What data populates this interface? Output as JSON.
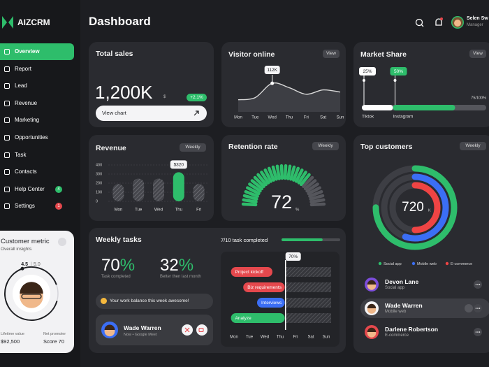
{
  "brand": "AIZCRM",
  "nav": [
    {
      "label": "Overview",
      "active": true
    },
    {
      "label": "Report"
    },
    {
      "label": "Lead"
    },
    {
      "label": "Revenue"
    },
    {
      "label": "Marketing"
    },
    {
      "label": "Opportunities"
    },
    {
      "label": "Task"
    },
    {
      "label": "Contacts"
    },
    {
      "label": "Help Center",
      "badge": "4",
      "badge_color": "#2ebd6b"
    },
    {
      "label": "Settings",
      "badge": "1",
      "badge_color": "#e5484d"
    }
  ],
  "customer_metric": {
    "title": "Customer metric",
    "subtitle": "Overall insights",
    "rating": 4.5,
    "rating_max": {
      "value": 5,
      "label": "5.0"
    },
    "stats": [
      {
        "label": "Lifetime value",
        "value": "$92,500"
      },
      {
        "label": "Net promoter",
        "value": "Score 70"
      }
    ]
  },
  "header": {
    "title": "Dashboard",
    "user_name": "Selen Sw",
    "user_role": "Manager"
  },
  "total_sales": {
    "title": "Total sales",
    "value": "1,200K",
    "unit": "$",
    "change": "+2.1%",
    "button": "View chart"
  },
  "visitor_online": {
    "title": "Visitor online",
    "button": "View",
    "chart": {
      "type": "area",
      "categories": [
        "Mon",
        "Tue",
        "Wed",
        "Thu",
        "Fri",
        "Sat",
        "Sun"
      ],
      "values": [
        82,
        86,
        112,
        104,
        92,
        100,
        96
      ],
      "value_labels": [
        null,
        null,
        "112K",
        null,
        null,
        null,
        null
      ],
      "ylim": [
        60,
        130
      ],
      "color": "#d9d9d9"
    }
  },
  "market_share": {
    "title": "Market Share",
    "button": "View",
    "total_label": "75/100%",
    "xlim": [
      0,
      100
    ],
    "series": [
      {
        "name": "Tiktok",
        "value": 25,
        "value_label": "25%",
        "color": "#ffffff"
      },
      {
        "name": "Instagram",
        "value": 50,
        "value_label": "50%",
        "color": "#2ebd6b"
      }
    ]
  },
  "revenue": {
    "title": "Revenue",
    "button": "Weekly",
    "chart": {
      "type": "bar",
      "categories": [
        "Mon",
        "Tue",
        "Wed",
        "Thu",
        "Fri"
      ],
      "values": [
        190,
        250,
        250,
        320,
        190
      ],
      "value_labels": [
        null,
        null,
        null,
        "$320",
        null
      ],
      "highlight": 3,
      "ylim": [
        0,
        400
      ],
      "yticks": [
        0,
        100,
        200,
        300,
        400
      ],
      "color": "#2ebd6b"
    }
  },
  "retention": {
    "title": "Retention rate",
    "button": "Weekly",
    "value": 72,
    "unit": "%",
    "max": 100,
    "color": "#2ebd6b"
  },
  "top_customers": {
    "title": "Top customers",
    "button": "Weekly",
    "total": "720",
    "unit": "K",
    "max": 100,
    "series": [
      {
        "name": "Social app",
        "color": "#2ebd6b",
        "value": 75
      },
      {
        "name": "Mobile web",
        "color": "#3b6ef5",
        "value": 55
      },
      {
        "name": "E-commerce",
        "color": "#ef4444",
        "value": 50
      }
    ],
    "highlight": 1,
    "customers": [
      {
        "name": "Devon Lane",
        "source": "Social app"
      },
      {
        "name": "Wade Warren",
        "source": "Mobile web"
      },
      {
        "name": "Darlene Robertson",
        "source": "E-commerce"
      }
    ]
  },
  "weekly_tasks": {
    "title": "Weekly tasks",
    "progress": {
      "label": "7/10 task completed",
      "value": 7,
      "max": 10
    },
    "stats": [
      {
        "value": "70",
        "unit": "%",
        "label": "Task completed"
      },
      {
        "value": "32",
        "unit": "%",
        "label": "Better then last month"
      }
    ],
    "message": "Your work balance this week awesome!",
    "meeting": {
      "name": "Wade Warren",
      "detail": "Now • Google Meet"
    },
    "gantt": {
      "categories": [
        "Mon",
        "Tue",
        "Wed",
        "Thu",
        "Fri",
        "Sat",
        "Sun"
      ],
      "xlim": [
        0,
        7
      ],
      "tasks": [
        {
          "name": "Project kickoff",
          "start": 0.3,
          "end": 3,
          "color": "#e5484d"
        },
        {
          "name": "Biz requirements",
          "start": 1.1,
          "end": 3.8,
          "color": "#e5484d"
        },
        {
          "name": "Interviews",
          "start": 2,
          "end": 3.8,
          "color": "#3b6ef5"
        },
        {
          "name": "Analyze",
          "start": 0.3,
          "end": 3.8,
          "color": "#2ebd6b"
        }
      ],
      "marker": {
        "label": "70%",
        "x": 3.85
      }
    }
  }
}
